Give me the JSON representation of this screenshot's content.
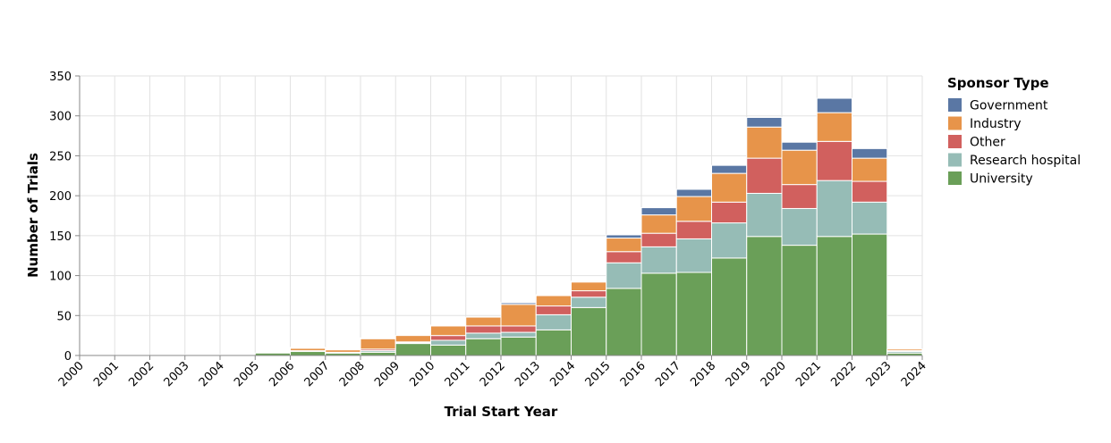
{
  "chart_data": {
    "type": "bar",
    "stacked": true,
    "xlabel": "Trial Start Year",
    "ylabel": "Number of Trials",
    "ylim": [
      0,
      350
    ],
    "yticks": [
      0,
      50,
      100,
      150,
      200,
      250,
      300,
      350
    ],
    "x_edges": [
      "2000",
      "2001",
      "2002",
      "2003",
      "2004",
      "2005",
      "2006",
      "2007",
      "2008",
      "2009",
      "2010",
      "2011",
      "2012",
      "2013",
      "2014",
      "2015",
      "2016",
      "2017",
      "2018",
      "2019",
      "2020",
      "2021",
      "2022",
      "2023",
      "2024"
    ],
    "bins": [
      "2000",
      "2001",
      "2002",
      "2003",
      "2004",
      "2005",
      "2006",
      "2007",
      "2008",
      "2009",
      "2010",
      "2011",
      "2012",
      "2013",
      "2014",
      "2015",
      "2016",
      "2017",
      "2018",
      "2019",
      "2020",
      "2021",
      "2022",
      "2023"
    ],
    "grid": true,
    "legend": {
      "title": "Sponsor Type",
      "placement": "right"
    },
    "series": [
      {
        "name": "University",
        "color": "#6a9f58",
        "values": [
          0,
          0,
          0,
          0,
          0,
          3,
          5,
          3,
          4,
          15,
          13,
          21,
          23,
          32,
          60,
          84,
          103,
          104,
          122,
          149,
          138,
          149,
          152,
          3
        ]
      },
      {
        "name": "Research hospital",
        "color": "#96bcb6",
        "values": [
          0,
          0,
          0,
          0,
          0,
          0,
          0,
          0,
          2,
          1,
          6,
          7,
          6,
          19,
          13,
          32,
          33,
          42,
          44,
          54,
          46,
          70,
          40,
          2
        ]
      },
      {
        "name": "Other",
        "color": "#d1605e",
        "values": [
          0,
          0,
          0,
          0,
          0,
          0,
          1,
          1,
          2,
          1,
          6,
          9,
          8,
          11,
          8,
          14,
          17,
          22,
          26,
          44,
          30,
          49,
          26,
          1
        ]
      },
      {
        "name": "Industry",
        "color": "#e7944a",
        "values": [
          0,
          0,
          0,
          1,
          0,
          0,
          3,
          3,
          13,
          8,
          12,
          11,
          27,
          13,
          11,
          17,
          23,
          31,
          36,
          39,
          43,
          36,
          29,
          2
        ]
      },
      {
        "name": "Government",
        "color": "#5a77a4",
        "values": [
          0,
          0,
          0,
          0,
          0,
          0,
          1,
          0,
          1,
          0,
          1,
          0,
          2,
          1,
          1,
          4,
          9,
          9,
          10,
          12,
          10,
          18,
          12,
          0
        ]
      }
    ]
  }
}
